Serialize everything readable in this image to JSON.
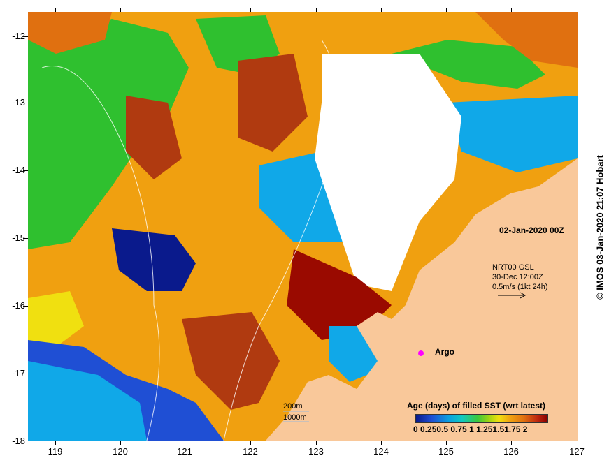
{
  "map": {
    "date_label": "02-Jan-2020 00Z",
    "current_info": [
      "NRT00 GSL",
      "30-Dec 12:00Z",
      "0.5m/s (1kt 24h)"
    ],
    "isobath_labels": [
      "200m",
      "1000m"
    ],
    "argo_label": "Argo",
    "colorbar_title": "Age (days) of filled SST (wrt latest)",
    "colorbar_ticks": "0 0.250.5 0.75  1  1.251.51.75  2",
    "copyright": "© IMOS 03-Jan-2020 21:07 Hobart",
    "y_ticks": [
      "-12",
      "-13",
      "-14",
      "-15",
      "-16",
      "-17",
      "-18"
    ],
    "x_ticks": [
      "119",
      "120",
      "121",
      "122",
      "123",
      "124",
      "125",
      "126",
      "127"
    ],
    "colors": {
      "land": "#f9c89a",
      "age_0": "#0a1a8c",
      "age_mid": "#3cc83c",
      "age_2": "#8a0000",
      "no_data": "#ffffff",
      "argo": "#ff00ff"
    }
  }
}
